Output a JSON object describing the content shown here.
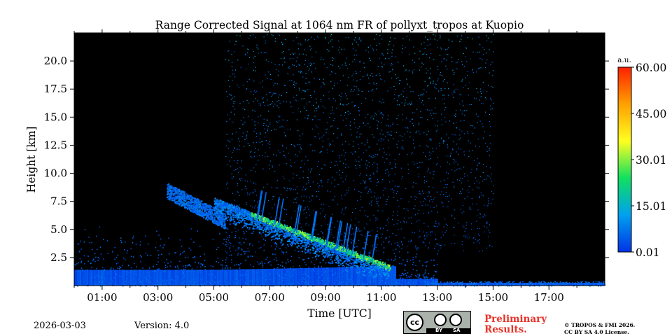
{
  "chart_data": {
    "type": "heatmap",
    "title": "Range Corrected Signal at 1064 nm FR of pollyxt_tropos at Kuopio",
    "xlabel": "Time [UTC]",
    "ylabel": "Height [km]",
    "x_range_hours": [
      0,
      19
    ],
    "y_range_km": [
      0,
      22.5
    ],
    "x_ticks": [
      {
        "value": 1,
        "label": "01:00"
      },
      {
        "value": 3,
        "label": "03:00"
      },
      {
        "value": 5,
        "label": "05:00"
      },
      {
        "value": 7,
        "label": "07:00"
      },
      {
        "value": 9,
        "label": "09:00"
      },
      {
        "value": 11,
        "label": "11:00"
      },
      {
        "value": 13,
        "label": "13:00"
      },
      {
        "value": 15,
        "label": "15:00"
      },
      {
        "value": 17,
        "label": "17:00"
      }
    ],
    "y_ticks": [
      {
        "value": 2.5,
        "label": "2.5"
      },
      {
        "value": 5.0,
        "label": "5.0"
      },
      {
        "value": 7.5,
        "label": "7.5"
      },
      {
        "value": 10.0,
        "label": "10.0"
      },
      {
        "value": 12.5,
        "label": "12.5"
      },
      {
        "value": 15.0,
        "label": "15.0"
      },
      {
        "value": 17.5,
        "label": "17.5"
      },
      {
        "value": 20.0,
        "label": "20.0"
      }
    ],
    "colorbar": {
      "unit": "a.u.",
      "min": 0.01,
      "max": 60.0,
      "ticks": [
        {
          "value": 0.01,
          "label": "0.01"
        },
        {
          "value": 15.01,
          "label": "15.01"
        },
        {
          "value": 30.01,
          "label": "30.01"
        },
        {
          "value": 45.0,
          "label": "45.00"
        },
        {
          "value": 60.0,
          "label": "60.00"
        }
      ],
      "colors": [
        "#0033e6",
        "#00a0f0",
        "#10e060",
        "#ffff20",
        "#ffa000",
        "#ff2000"
      ]
    },
    "background_color": "#000000"
  },
  "footer": {
    "date": "2026-03-03",
    "version": "Version: 4.0",
    "preliminary_line1": "Preliminary",
    "preliminary_line2": "Results.",
    "copyright_line1": "© TROPOS & FMI 2026.",
    "copyright_line2": "CC BY SA 4.0 License.",
    "license_logo": "cc-by-sa-badge",
    "license_cc": "cc",
    "license_by": "BY",
    "license_sa": "SA"
  }
}
